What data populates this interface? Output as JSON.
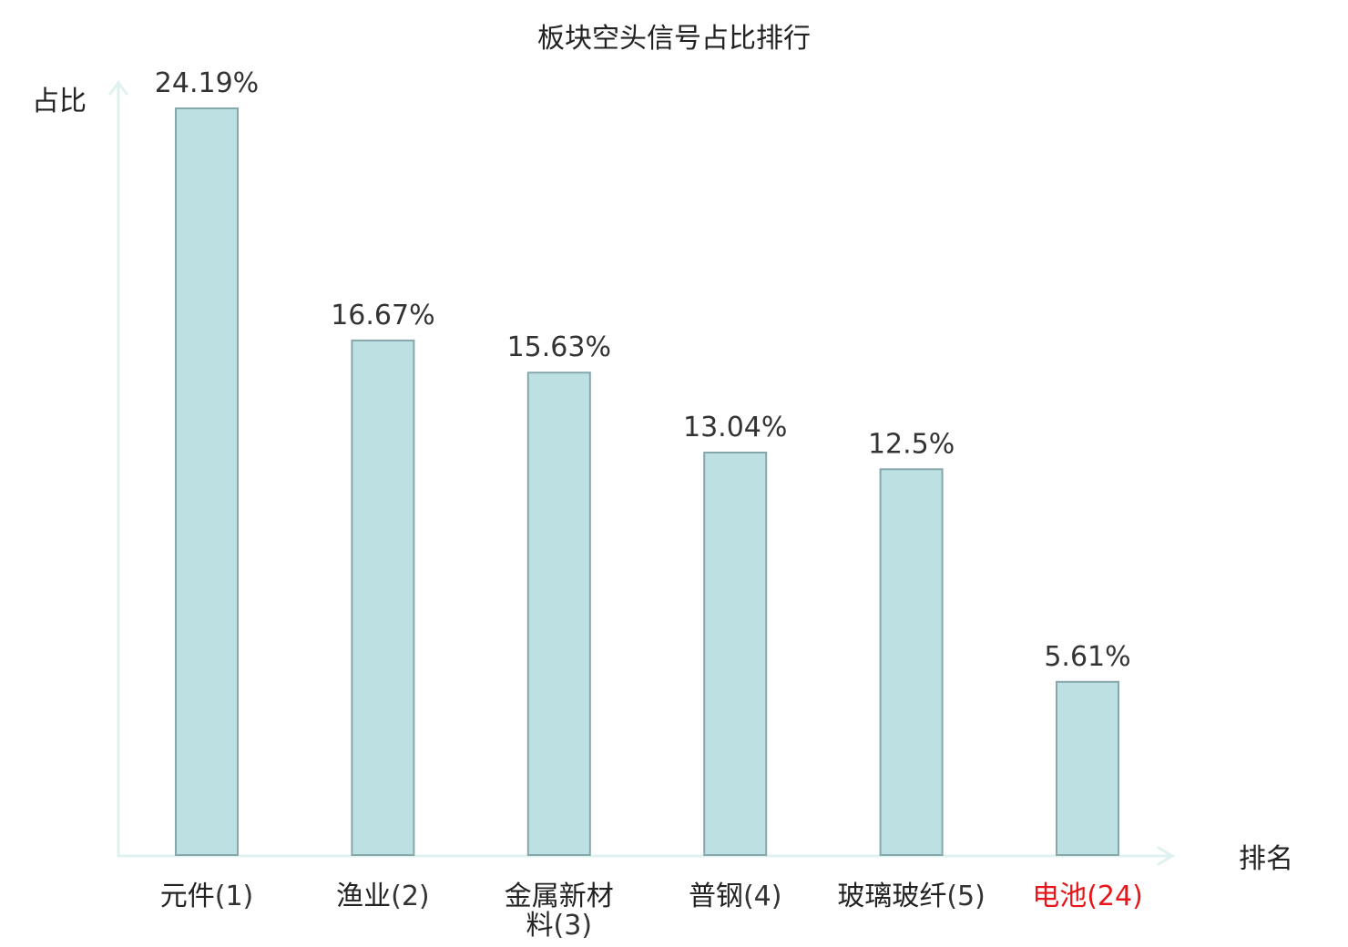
{
  "chart_data": {
    "type": "bar",
    "title": "板块空头信号占比排行",
    "xlabel": "排名",
    "ylabel": "占比",
    "categories": [
      {
        "name": "元件",
        "rank": "(1)",
        "highlight": false
      },
      {
        "name": "渔业",
        "rank": "(2)",
        "highlight": false
      },
      {
        "name": "金属新材料",
        "rank": "(3)",
        "highlight": false
      },
      {
        "name": "普钢",
        "rank": "(4)",
        "highlight": false
      },
      {
        "name": "玻璃玻纤",
        "rank": "(5)",
        "highlight": false
      },
      {
        "name": "电池",
        "rank": "(24)",
        "highlight": true
      }
    ],
    "values": [
      24.19,
      16.67,
      15.63,
      13.04,
      12.5,
      5.61
    ],
    "value_labels": [
      "24.19%",
      "16.67%",
      "15.63%",
      "13.04%",
      "12.5%",
      "5.61%"
    ],
    "ylim": [
      0,
      24.19
    ],
    "grid": false,
    "legend": "none",
    "colors": {
      "bar_fill": "#bde0e3",
      "bar_stroke": "#86a7ab",
      "axis": "#dff2ef",
      "text": "#222222",
      "value_text": "#333333",
      "rank_text": "#333333",
      "highlight": "#e8161b"
    }
  }
}
